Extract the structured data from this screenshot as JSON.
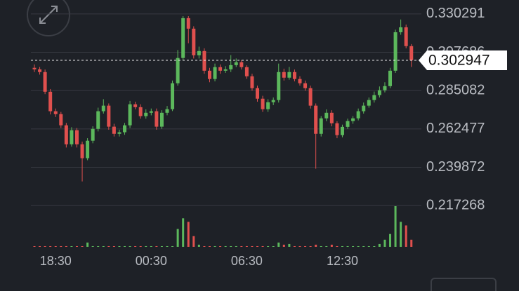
{
  "chart_data": {
    "type": "candlestick",
    "categories": [
      null,
      null,
      null,
      null,
      "18:30",
      null,
      null,
      null,
      null,
      null,
      null,
      null,
      null,
      null,
      null,
      null,
      null,
      null,
      null,
      null,
      null,
      null,
      "00:30",
      null,
      null,
      null,
      null,
      null,
      null,
      null,
      null,
      null,
      null,
      null,
      null,
      null,
      null,
      null,
      null,
      null,
      "06:30",
      null,
      null,
      null,
      null,
      null,
      null,
      null,
      null,
      null,
      null,
      null,
      null,
      null,
      null,
      null,
      null,
      null,
      "12:30",
      null,
      null,
      null,
      null,
      null,
      null,
      null,
      null,
      null,
      null,
      null,
      null,
      null
    ],
    "open": [
      0.2985,
      0.2976,
      0.296,
      0.2844,
      0.2729,
      0.2712,
      0.2646,
      0.2534,
      0.2617,
      0.2534,
      0.2452,
      0.2555,
      0.2625,
      0.2729,
      0.2762,
      0.2638,
      0.2596,
      0.2605,
      0.2646,
      0.277,
      0.2753,
      0.27,
      0.272,
      0.2729,
      0.2638,
      0.272,
      0.2741,
      0.2894,
      0.3043,
      0.3278,
      0.3216,
      0.3059,
      0.3084,
      0.2968,
      0.2919,
      0.2989,
      0.2968,
      0.2976,
      0.3001,
      0.3018,
      0.2989,
      0.2935,
      0.2865,
      0.2803,
      0.2741,
      0.2782,
      0.2795,
      0.296,
      0.2927,
      0.296,
      0.2919,
      0.2894,
      0.2865,
      0.2762,
      0.2596,
      0.2687,
      0.272,
      0.2658,
      0.2588,
      0.2637,
      0.2671,
      0.2687,
      0.2729,
      0.2762,
      0.2795,
      0.2824,
      0.2853,
      0.2877,
      0.2968,
      0.3195,
      0.3224,
      0.3113
    ],
    "high": [
      0.3005,
      0.299,
      0.2975,
      0.286,
      0.2745,
      0.2725,
      0.266,
      0.2635,
      0.263,
      0.255,
      0.257,
      0.264,
      0.275,
      0.28,
      0.2775,
      0.2655,
      0.262,
      0.266,
      0.279,
      0.2785,
      0.277,
      0.274,
      0.2745,
      0.2745,
      0.2735,
      0.276,
      0.291,
      0.309,
      0.329,
      0.329,
      0.323,
      0.311,
      0.31,
      0.2985,
      0.301,
      0.3005,
      0.2995,
      0.306,
      0.304,
      0.303,
      0.3,
      0.295,
      0.288,
      0.282,
      0.28,
      0.281,
      0.301,
      0.298,
      0.299,
      0.2975,
      0.2935,
      0.291,
      0.288,
      0.2775,
      0.27,
      0.274,
      0.2735,
      0.267,
      0.265,
      0.2685,
      0.27,
      0.2745,
      0.278,
      0.281,
      0.2845,
      0.2875,
      0.29,
      0.2985,
      0.321,
      0.327,
      0.324,
      0.3125
    ],
    "low": [
      0.296,
      0.2945,
      0.283,
      0.271,
      0.2695,
      0.263,
      0.2515,
      0.252,
      0.2515,
      0.2315,
      0.244,
      0.254,
      0.261,
      0.2715,
      0.262,
      0.258,
      0.258,
      0.259,
      0.263,
      0.274,
      0.2685,
      0.2685,
      0.2705,
      0.262,
      0.2625,
      0.2705,
      0.273,
      0.288,
      0.303,
      0.313,
      0.304,
      0.304,
      0.295,
      0.29,
      0.2905,
      0.295,
      0.2955,
      0.296,
      0.299,
      0.2975,
      0.292,
      0.285,
      0.2785,
      0.2725,
      0.2725,
      0.2765,
      0.278,
      0.291,
      0.2915,
      0.2905,
      0.288,
      0.285,
      0.2745,
      0.239,
      0.258,
      0.267,
      0.264,
      0.257,
      0.2575,
      0.2625,
      0.2655,
      0.2675,
      0.2715,
      0.275,
      0.278,
      0.281,
      0.284,
      0.2865,
      0.2955,
      0.318,
      0.31,
      0.299
    ],
    "close": [
      0.2976,
      0.296,
      0.2844,
      0.2729,
      0.2712,
      0.2646,
      0.2534,
      0.2617,
      0.2534,
      0.2452,
      0.2555,
      0.2625,
      0.2729,
      0.2762,
      0.2638,
      0.2596,
      0.2605,
      0.2646,
      0.277,
      0.2753,
      0.27,
      0.272,
      0.2729,
      0.2638,
      0.272,
      0.2741,
      0.2894,
      0.3043,
      0.3278,
      0.3216,
      0.3059,
      0.3084,
      0.2968,
      0.2919,
      0.2989,
      0.2968,
      0.2976,
      0.3001,
      0.3018,
      0.2989,
      0.2935,
      0.2865,
      0.2803,
      0.2741,
      0.2782,
      0.2795,
      0.296,
      0.2927,
      0.296,
      0.2919,
      0.2894,
      0.2865,
      0.2762,
      0.2596,
      0.2687,
      0.272,
      0.2658,
      0.2588,
      0.2637,
      0.2671,
      0.2687,
      0.2729,
      0.2762,
      0.2795,
      0.2824,
      0.2853,
      0.2877,
      0.2968,
      0.3195,
      0.3224,
      0.3113,
      0.303
    ],
    "volume": [
      1,
      1,
      1,
      1,
      1,
      1,
      1,
      1,
      1,
      1,
      6,
      1,
      1,
      1,
      1,
      1,
      1,
      1,
      1,
      1,
      1,
      1,
      1,
      1,
      1,
      1,
      1,
      25,
      40,
      35,
      15,
      3,
      1,
      1,
      1,
      1,
      1,
      1,
      1,
      1,
      1,
      1,
      1,
      1,
      1,
      1,
      6,
      3,
      4,
      1,
      1,
      1,
      1,
      3,
      1,
      1,
      3,
      1,
      1,
      1,
      1,
      1,
      1,
      1,
      1,
      4,
      10,
      18,
      57,
      35,
      30,
      10
    ],
    "up_color": "#5cb85c",
    "down_color": "#e0504e",
    "ylim": [
      0.2165,
      0.3385
    ],
    "yticks": [
      0.330291,
      0.307686,
      0.285082,
      0.262477,
      0.239872,
      0.217268
    ],
    "current_price": 0.302947,
    "grid": true
  }
}
